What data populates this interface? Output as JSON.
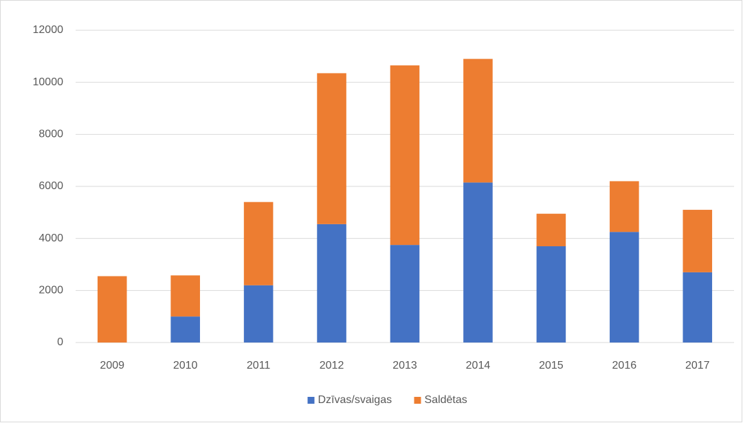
{
  "chart_data": {
    "type": "stacked_bar",
    "categories": [
      "2009",
      "2010",
      "2011",
      "2012",
      "2013",
      "2014",
      "2015",
      "2016",
      "2017"
    ],
    "series": [
      {
        "name": "Dzīvas/svaigas",
        "color": "#4472c4",
        "values": [
          0,
          1000,
          2200,
          4550,
          3750,
          6150,
          3700,
          4250,
          2700
        ]
      },
      {
        "name": "Saldētas",
        "color": "#ed7d31",
        "values": [
          2550,
          1580,
          3200,
          5800,
          6900,
          4750,
          1250,
          1950,
          2400
        ]
      }
    ],
    "ylim": [
      0,
      12000
    ],
    "yticks": [
      0,
      2000,
      4000,
      6000,
      8000,
      10000,
      12000
    ],
    "grid": true,
    "legend": "bottom"
  }
}
